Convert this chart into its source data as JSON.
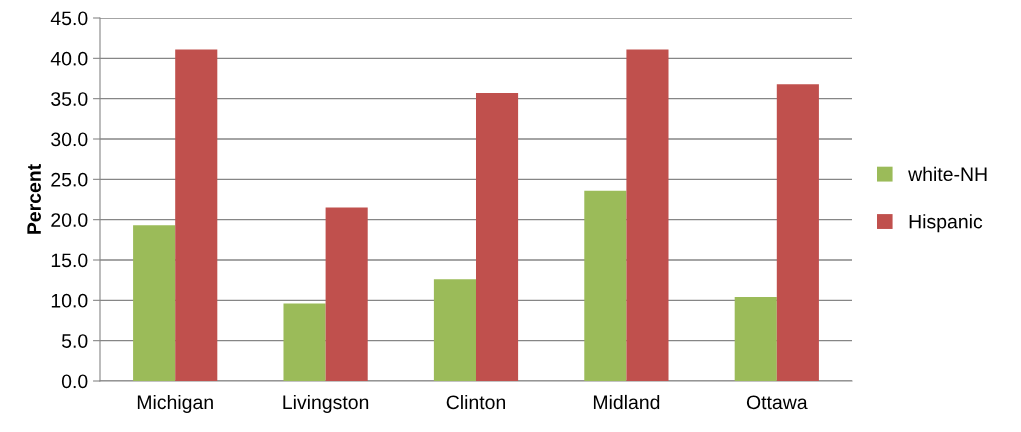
{
  "chart_data": {
    "type": "bar",
    "ylabel": "Percent",
    "categories": [
      "Michigan",
      "Livingston",
      "Clinton",
      "Midland",
      "Ottawa"
    ],
    "series": [
      {
        "name": "white-NH",
        "color": "#9bbb59",
        "values": [
          19.3,
          9.6,
          12.6,
          23.6,
          10.4
        ]
      },
      {
        "name": "Hispanic",
        "color": "#c0504d",
        "values": [
          41.1,
          21.5,
          35.7,
          41.1,
          36.8
        ]
      }
    ],
    "ylim": [
      0,
      45
    ],
    "yticks": [
      {
        "value": 0,
        "label": "0.0"
      },
      {
        "value": 5,
        "label": "5.0"
      },
      {
        "value": 10,
        "label": "10.0"
      },
      {
        "value": 15,
        "label": "15.0"
      },
      {
        "value": 20,
        "label": "20.0"
      },
      {
        "value": 25,
        "label": "25.0"
      },
      {
        "value": 30,
        "label": "30.0"
      },
      {
        "value": 35,
        "label": "35.0"
      },
      {
        "value": 40,
        "label": "40.0"
      },
      {
        "value": 45,
        "label": "45.0"
      }
    ],
    "grid": "y",
    "legend": "right"
  }
}
